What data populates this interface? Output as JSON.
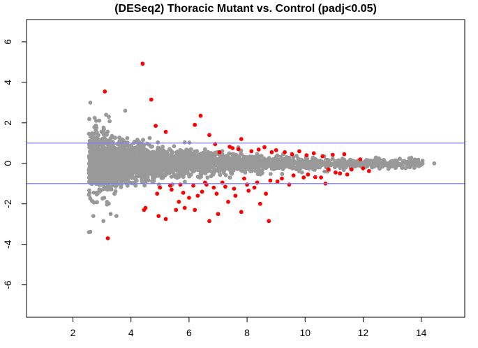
{
  "chart_data": {
    "type": "scatter",
    "title": "(DESeq2) Thoracic Mutant vs. Control (padj<0.05)",
    "xlabel": "",
    "ylabel": "",
    "xlim": [
      0.4,
      15.5
    ],
    "ylim": [
      -7.6,
      7.1
    ],
    "x_ticks": [
      2,
      4,
      6,
      8,
      10,
      12,
      14
    ],
    "y_ticks": [
      -6,
      -4,
      -2,
      0,
      2,
      4,
      6
    ],
    "hlines": [
      1,
      -1
    ],
    "grid": false,
    "legend": "none",
    "colors": {
      "not_significant": "#999999",
      "significant": "#ff0000",
      "hline": "#7b7bff",
      "axis": "#000000"
    },
    "series": [
      {
        "points": [
          [
            4.4,
            4.92
          ],
          [
            4.7,
            3.15
          ],
          [
            3.1,
            3.55
          ],
          [
            3.2,
            -3.7
          ],
          [
            6.4,
            2.35
          ],
          [
            6.2,
            1.9
          ],
          [
            4.85,
            1.85
          ],
          [
            5.2,
            1.55
          ],
          [
            6.7,
            1.4
          ],
          [
            7.8,
            1.2
          ],
          [
            4.5,
            -2.2
          ],
          [
            4.45,
            -2.3
          ],
          [
            5.2,
            -2.75
          ],
          [
            4.95,
            -2.6
          ],
          [
            6.7,
            -2.85
          ],
          [
            8.75,
            -2.85
          ],
          [
            6.2,
            -2.3
          ],
          [
            7.0,
            -2.5
          ],
          [
            7.8,
            -2.4
          ],
          [
            8.45,
            -2.0
          ],
          [
            5.0,
            -1.2
          ],
          [
            5.4,
            -1.3
          ],
          [
            5.8,
            -1.45
          ],
          [
            6.0,
            -1.7
          ],
          [
            5.65,
            -1.9
          ],
          [
            6.45,
            -1.4
          ],
          [
            6.95,
            -1.5
          ],
          [
            7.25,
            -1.15
          ],
          [
            7.6,
            -1.6
          ],
          [
            8.05,
            -1.35
          ],
          [
            8.25,
            -1.2
          ],
          [
            8.65,
            -1.5
          ],
          [
            5.55,
            -2.3
          ],
          [
            5.85,
            -2.2
          ],
          [
            7.35,
            -1.9
          ],
          [
            4.9,
            -1.5
          ],
          [
            6.9,
            0.95
          ],
          [
            7.4,
            0.82
          ],
          [
            7.7,
            0.7
          ],
          [
            8.15,
            0.6
          ],
          [
            8.6,
            0.8
          ],
          [
            9.0,
            0.65
          ],
          [
            9.3,
            0.55
          ],
          [
            9.8,
            0.6
          ],
          [
            10.3,
            0.5
          ],
          [
            10.95,
            0.42
          ],
          [
            11.35,
            0.45
          ],
          [
            6.6,
            -1.05
          ],
          [
            9.2,
            -0.75
          ],
          [
            9.6,
            -0.6
          ],
          [
            10.1,
            -0.55
          ],
          [
            10.55,
            -0.7
          ],
          [
            11.05,
            -0.45
          ],
          [
            11.6,
            -0.3
          ],
          [
            12.2,
            -0.38
          ],
          [
            10.8,
            -0.3
          ],
          [
            10.7,
            -1.0
          ],
          [
            9.45,
            -1.05
          ],
          [
            8.8,
            -0.85
          ],
          [
            7.15,
            -0.95
          ],
          [
            7.9,
            -0.75
          ],
          [
            8.35,
            -0.95
          ],
          [
            6.15,
            -1.1
          ],
          [
            5.7,
            -1.05
          ],
          [
            9.05,
            -0.9
          ],
          [
            11.2,
            -0.5
          ],
          [
            11.45,
            -0.55
          ],
          [
            10.35,
            -0.68
          ],
          [
            7.5,
            0.75
          ],
          [
            6.55,
            -0.95
          ],
          [
            8.0,
            -1.05
          ],
          [
            5.35,
            -1.1
          ],
          [
            7.55,
            -1.25
          ],
          [
            6.85,
            -1.2
          ],
          [
            6.3,
            -1.6
          ],
          [
            9.95,
            -0.7
          ],
          [
            10.05,
            0.4
          ],
          [
            11.9,
            0.2
          ],
          [
            9.55,
            0.45
          ],
          [
            8.85,
            0.55
          ],
          [
            8.4,
            0.68
          ],
          [
            7.05,
            0.55
          ],
          [
            12.0,
            -0.25
          ],
          [
            10.6,
            0.35
          ]
        ]
      }
    ]
  }
}
